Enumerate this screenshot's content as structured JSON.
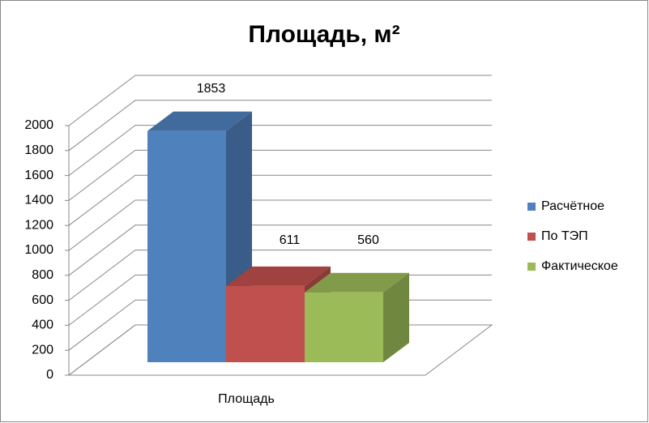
{
  "chart_data": {
    "type": "bar3d",
    "title": "Площадь, м²",
    "categories": [
      "Площадь"
    ],
    "series": [
      {
        "name": "Расчётное",
        "color": "#4f81bd",
        "values": [
          1853
        ]
      },
      {
        "name": "По ТЭП",
        "color": "#c0504d",
        "values": [
          611
        ]
      },
      {
        "name": "Фактическое",
        "color": "#9bbb59",
        "values": [
          560
        ]
      }
    ],
    "ylim": [
      0,
      2000
    ],
    "yticks": [
      0,
      200,
      400,
      600,
      800,
      1000,
      1200,
      1400,
      1600,
      1800,
      2000
    ],
    "grid": true,
    "legend": "right"
  }
}
